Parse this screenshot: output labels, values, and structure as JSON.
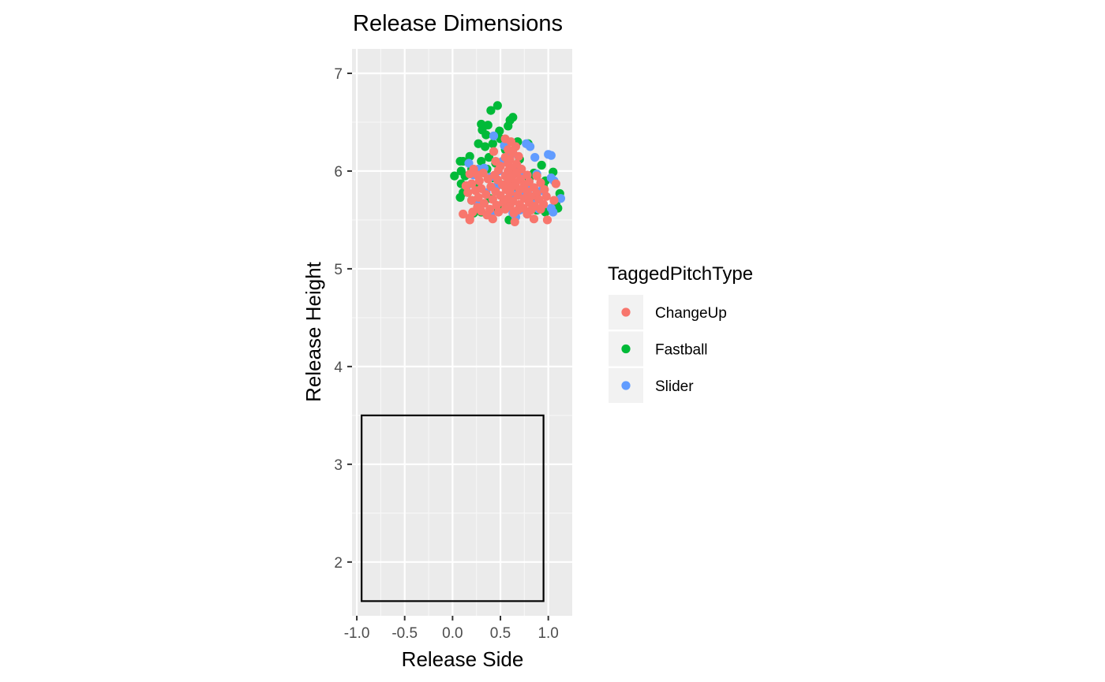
{
  "chart_data": {
    "type": "scatter",
    "title": "Release Dimensions",
    "xlabel": "Release Side",
    "ylabel": "Release Height",
    "xlim": [
      -1.05,
      1.25
    ],
    "ylim": [
      1.45,
      7.25
    ],
    "x_ticks": [
      -1.0,
      -0.5,
      0.0,
      0.5,
      1.0
    ],
    "x_tick_labels": [
      "-1.0",
      "-0.5",
      "0.0",
      "0.5",
      "1.0"
    ],
    "y_ticks": [
      2,
      3,
      4,
      5,
      6,
      7
    ],
    "y_tick_labels": [
      "2",
      "3",
      "4",
      "5",
      "6",
      "7"
    ],
    "grid": true,
    "legend": {
      "title": "TaggedPitchType",
      "position": "right"
    },
    "strike_zone": {
      "x": [
        -0.95,
        0.95
      ],
      "y": [
        1.6,
        3.5
      ]
    },
    "series": [
      {
        "name": "Fastball",
        "color": "#00BA38",
        "points": [
          [
            0.47,
            6.67
          ],
          [
            0.4,
            6.62
          ],
          [
            0.63,
            6.55
          ],
          [
            0.6,
            6.52
          ],
          [
            0.58,
            6.46
          ],
          [
            0.3,
            6.48
          ],
          [
            0.37,
            6.47
          ],
          [
            0.31,
            6.42
          ],
          [
            0.49,
            6.41
          ],
          [
            0.35,
            6.37
          ],
          [
            0.5,
            6.33
          ],
          [
            0.68,
            6.3
          ],
          [
            0.79,
            6.28
          ],
          [
            0.27,
            6.28
          ],
          [
            0.42,
            6.28
          ],
          [
            0.34,
            6.25
          ],
          [
            0.55,
            6.22
          ],
          [
            0.18,
            6.15
          ],
          [
            0.38,
            6.14
          ],
          [
            0.08,
            6.1
          ],
          [
            0.11,
            6.1
          ],
          [
            0.3,
            6.1
          ],
          [
            0.45,
            6.08
          ],
          [
            0.7,
            6.12
          ],
          [
            0.93,
            6.06
          ],
          [
            0.2,
            6.02
          ],
          [
            0.36,
            6.02
          ],
          [
            0.09,
            6.0
          ],
          [
            1.05,
            5.99
          ],
          [
            0.85,
            5.98
          ],
          [
            0.02,
            5.95
          ],
          [
            0.13,
            5.95
          ],
          [
            0.43,
            5.93
          ],
          [
            0.8,
            5.92
          ],
          [
            0.97,
            5.9
          ],
          [
            0.09,
            5.87
          ],
          [
            0.52,
            5.86
          ],
          [
            0.27,
            5.84
          ],
          [
            0.95,
            5.84
          ],
          [
            0.68,
            5.8
          ],
          [
            0.11,
            5.78
          ],
          [
            0.72,
            5.77
          ],
          [
            1.12,
            5.77
          ],
          [
            0.85,
            5.74
          ],
          [
            0.08,
            5.73
          ],
          [
            0.39,
            5.72
          ],
          [
            0.2,
            5.7
          ],
          [
            1.08,
            5.66
          ],
          [
            0.47,
            5.64
          ],
          [
            0.88,
            5.6
          ],
          [
            0.3,
            5.58
          ],
          [
            0.45,
            5.6
          ],
          [
            0.97,
            5.58
          ],
          [
            0.22,
            5.57
          ],
          [
            1.1,
            5.62
          ],
          [
            0.59,
            5.5
          ]
        ]
      },
      {
        "name": "Slider",
        "color": "#619CFF",
        "points": [
          [
            0.43,
            6.36
          ],
          [
            0.77,
            6.28
          ],
          [
            0.81,
            6.25
          ],
          [
            0.54,
            6.26
          ],
          [
            1.0,
            6.17
          ],
          [
            1.03,
            6.16
          ],
          [
            0.86,
            6.14
          ],
          [
            0.6,
            6.15
          ],
          [
            0.17,
            6.08
          ],
          [
            0.52,
            6.1
          ],
          [
            0.27,
            6.02
          ],
          [
            0.33,
            6.03
          ],
          [
            0.48,
            6.0
          ],
          [
            0.66,
            6.01
          ],
          [
            0.88,
            5.97
          ],
          [
            0.72,
            5.95
          ],
          [
            0.22,
            5.96
          ],
          [
            0.4,
            5.94
          ],
          [
            1.03,
            5.93
          ],
          [
            1.06,
            5.9
          ],
          [
            0.58,
            5.88
          ],
          [
            0.15,
            5.85
          ],
          [
            0.46,
            5.84
          ],
          [
            0.8,
            5.82
          ],
          [
            0.93,
            5.8
          ],
          [
            0.35,
            5.78
          ],
          [
            0.62,
            5.77
          ],
          [
            0.75,
            5.74
          ],
          [
            1.13,
            5.72
          ],
          [
            0.55,
            5.7
          ],
          [
            0.25,
            5.69
          ],
          [
            0.85,
            5.66
          ],
          [
            1.03,
            5.62
          ],
          [
            0.7,
            5.6
          ],
          [
            0.9,
            5.61
          ],
          [
            0.63,
            5.57
          ],
          [
            1.05,
            5.58
          ],
          [
            0.78,
            5.56
          ],
          [
            0.66,
            5.53
          ],
          [
            0.4,
            5.56
          ]
        ]
      },
      {
        "name": "ChangeUp",
        "color": "#F8766D",
        "points": [
          [
            0.55,
            6.33
          ],
          [
            0.61,
            6.3
          ],
          [
            0.66,
            6.25
          ],
          [
            0.58,
            6.22
          ],
          [
            0.43,
            6.2
          ],
          [
            0.63,
            6.19
          ],
          [
            0.69,
            6.15
          ],
          [
            0.55,
            6.14
          ],
          [
            0.6,
            6.12
          ],
          [
            0.45,
            6.1
          ],
          [
            0.58,
            6.08
          ],
          [
            0.67,
            6.07
          ],
          [
            0.5,
            6.05
          ],
          [
            0.62,
            6.03
          ],
          [
            0.72,
            6.02
          ],
          [
            0.22,
            6.02
          ],
          [
            0.48,
            6.01
          ],
          [
            0.58,
            6.0
          ],
          [
            0.67,
            5.98
          ],
          [
            0.32,
            5.98
          ],
          [
            0.18,
            5.97
          ],
          [
            0.26,
            5.96
          ],
          [
            0.44,
            5.96
          ],
          [
            0.55,
            5.95
          ],
          [
            0.78,
            5.96
          ],
          [
            0.88,
            5.95
          ],
          [
            0.62,
            5.94
          ],
          [
            0.71,
            5.92
          ],
          [
            0.37,
            5.92
          ],
          [
            0.47,
            5.91
          ],
          [
            0.28,
            5.9
          ],
          [
            0.58,
            5.89
          ],
          [
            0.8,
            5.89
          ],
          [
            0.66,
            5.88
          ],
          [
            0.92,
            5.88
          ],
          [
            0.2,
            5.87
          ],
          [
            0.52,
            5.86
          ],
          [
            0.75,
            5.86
          ],
          [
            1.08,
            5.87
          ],
          [
            0.14,
            5.85
          ],
          [
            0.4,
            5.84
          ],
          [
            0.62,
            5.84
          ],
          [
            0.85,
            5.83
          ],
          [
            0.3,
            5.82
          ],
          [
            0.56,
            5.81
          ],
          [
            0.7,
            5.81
          ],
          [
            0.96,
            5.81
          ],
          [
            0.24,
            5.8
          ],
          [
            0.45,
            5.79
          ],
          [
            0.78,
            5.79
          ],
          [
            0.16,
            5.78
          ],
          [
            0.6,
            5.78
          ],
          [
            0.88,
            5.77
          ],
          [
            0.35,
            5.76
          ],
          [
            0.5,
            5.75
          ],
          [
            0.68,
            5.75
          ],
          [
            0.82,
            5.74
          ],
          [
            0.98,
            5.74
          ],
          [
            0.27,
            5.73
          ],
          [
            0.58,
            5.72
          ],
          [
            0.75,
            5.72
          ],
          [
            0.42,
            5.71
          ],
          [
            0.9,
            5.71
          ],
          [
            0.2,
            5.7
          ],
          [
            0.63,
            5.69
          ],
          [
            1.06,
            5.7
          ],
          [
            0.53,
            5.68
          ],
          [
            0.8,
            5.68
          ],
          [
            0.33,
            5.67
          ],
          [
            0.7,
            5.66
          ],
          [
            0.95,
            5.66
          ],
          [
            0.46,
            5.65
          ],
          [
            0.6,
            5.64
          ],
          [
            0.86,
            5.64
          ],
          [
            0.26,
            5.63
          ],
          [
            0.74,
            5.62
          ],
          [
            0.39,
            5.61
          ],
          [
            0.55,
            5.61
          ],
          [
            0.92,
            5.61
          ],
          [
            0.68,
            5.6
          ],
          [
            0.3,
            5.59
          ],
          [
            0.82,
            5.6
          ],
          [
            0.21,
            5.58
          ],
          [
            0.48,
            5.58
          ],
          [
            0.64,
            5.57
          ],
          [
            0.11,
            5.56
          ],
          [
            0.78,
            5.56
          ],
          [
            0.36,
            5.55
          ],
          [
            0.18,
            5.52
          ],
          [
            0.42,
            5.51
          ],
          [
            0.85,
            5.51
          ],
          [
            0.18,
            5.5
          ],
          [
            0.99,
            5.5
          ],
          [
            0.65,
            5.48
          ]
        ]
      }
    ]
  }
}
